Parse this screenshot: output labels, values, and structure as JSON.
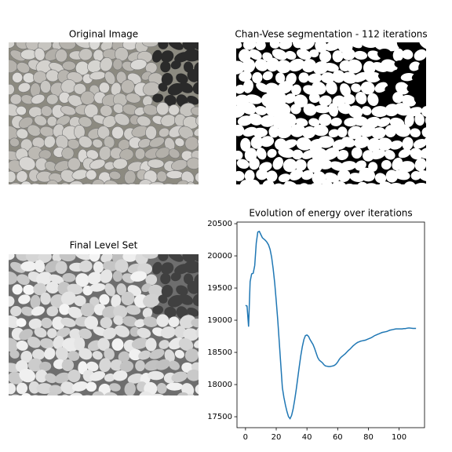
{
  "chart_data": [
    {
      "type": "image",
      "title": "Original Image",
      "style": "pebbles"
    },
    {
      "type": "image",
      "title": "Chan-Vese segmentation - 112 iterations",
      "style": "segmentation"
    },
    {
      "type": "image",
      "title": "Final Level Set",
      "style": "levelset"
    },
    {
      "type": "line",
      "title": "Evolution of energy over iterations",
      "color": "#1f77b4",
      "x": [
        0,
        1,
        2,
        3,
        4,
        5,
        6,
        7,
        8,
        9,
        10,
        11,
        12,
        13,
        14,
        15,
        16,
        17,
        18,
        19,
        20,
        21,
        22,
        23,
        24,
        25,
        26,
        27,
        28,
        29,
        30,
        31,
        32,
        33,
        34,
        35,
        36,
        37,
        38,
        39,
        40,
        41,
        42,
        43,
        44,
        45,
        46,
        47,
        48,
        49,
        50,
        51,
        52,
        53,
        54,
        55,
        56,
        57,
        58,
        59,
        60,
        61,
        62,
        63,
        64,
        65,
        66,
        67,
        68,
        69,
        70,
        71,
        72,
        73,
        74,
        75,
        76,
        77,
        78,
        79,
        80,
        81,
        82,
        83,
        84,
        85,
        86,
        87,
        88,
        89,
        90,
        91,
        92,
        93,
        94,
        95,
        96,
        97,
        98,
        99,
        100,
        101,
        102,
        103,
        104,
        105,
        106,
        107,
        108,
        109,
        110,
        111
      ],
      "values": [
        19230,
        19220,
        18900,
        19600,
        19720,
        19730,
        19850,
        20200,
        20370,
        20380,
        20330,
        20280,
        20260,
        20240,
        20210,
        20170,
        20100,
        19980,
        19800,
        19580,
        19300,
        19000,
        18650,
        18300,
        17950,
        17800,
        17680,
        17580,
        17500,
        17470,
        17520,
        17620,
        17760,
        17920,
        18100,
        18280,
        18450,
        18590,
        18700,
        18760,
        18770,
        18750,
        18700,
        18660,
        18620,
        18560,
        18490,
        18420,
        18380,
        18360,
        18340,
        18310,
        18290,
        18285,
        18280,
        18280,
        18285,
        18290,
        18300,
        18320,
        18350,
        18390,
        18420,
        18440,
        18460,
        18480,
        18505,
        18530,
        18550,
        18575,
        18600,
        18620,
        18640,
        18655,
        18665,
        18675,
        18680,
        18685,
        18690,
        18700,
        18710,
        18720,
        18730,
        18745,
        18760,
        18770,
        18780,
        18790,
        18800,
        18810,
        18815,
        18820,
        18825,
        18835,
        18845,
        18850,
        18855,
        18860,
        18865,
        18865,
        18865,
        18865,
        18865,
        18870,
        18870,
        18875,
        18878,
        18878,
        18875,
        18873,
        18873,
        18872
      ],
      "xlim": [
        -5.55,
        116.55
      ],
      "ylim": [
        17330,
        20525
      ],
      "xticks": [
        0,
        20,
        40,
        60,
        80,
        100
      ],
      "yticks": [
        17500,
        18000,
        18500,
        19000,
        19500,
        20000,
        20500
      ]
    }
  ]
}
